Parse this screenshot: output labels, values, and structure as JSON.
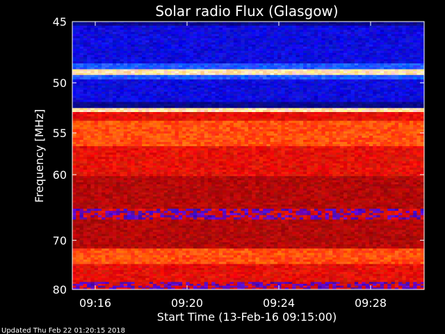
{
  "chart_data": {
    "type": "heatmap",
    "title": "Solar radio Flux (Glasgow)",
    "xlabel": "Start Time (13-Feb-16 09:15:00)",
    "ylabel": "Frequency [MHz]",
    "x_start": "09:15:00",
    "x_end": "09:30:20",
    "x_ticks": [
      "09:16",
      "09:20",
      "09:24",
      "09:28"
    ],
    "x_tick_values": [
      "09:16",
      "09:20",
      "09:24",
      "09:28"
    ],
    "y_ticks": [
      "45",
      "50",
      "55",
      "60",
      "70",
      "80"
    ],
    "y_tick_values": [
      45,
      50,
      55,
      60,
      70,
      80
    ],
    "ylim": [
      45,
      80
    ],
    "y_scale": "reciprocal",
    "grid": false,
    "colors": {
      "background": "#000000",
      "axis": "#ffffff",
      "low": "#0000c8",
      "mid": "#c80000",
      "high": "#ffd700"
    },
    "bands": [
      {
        "from": 45.0,
        "to": 45.3,
        "level": "low-dark"
      },
      {
        "from": 45.3,
        "to": 48.3,
        "level": "low"
      },
      {
        "from": 48.3,
        "to": 48.8,
        "level": "low-bright"
      },
      {
        "from": 48.8,
        "to": 49.3,
        "level": "high"
      },
      {
        "from": 49.3,
        "to": 49.7,
        "level": "low-bright"
      },
      {
        "from": 49.7,
        "to": 51.8,
        "level": "low"
      },
      {
        "from": 51.8,
        "to": 52.4,
        "level": "low-dark"
      },
      {
        "from": 52.4,
        "to": 52.8,
        "level": "high"
      },
      {
        "from": 52.8,
        "to": 53.7,
        "level": "mid"
      },
      {
        "from": 53.7,
        "to": 56.5,
        "level": "mid-bright"
      },
      {
        "from": 56.5,
        "to": 60.2,
        "level": "mid"
      },
      {
        "from": 60.2,
        "to": 64.8,
        "level": "mid-dark"
      },
      {
        "from": 64.8,
        "to": 66.5,
        "level": "mixed"
      },
      {
        "from": 66.5,
        "to": 71.5,
        "level": "mid-dark"
      },
      {
        "from": 71.5,
        "to": 74.5,
        "level": "mid-bright"
      },
      {
        "from": 74.5,
        "to": 78.3,
        "level": "mid"
      },
      {
        "from": 78.3,
        "to": 80.0,
        "level": "mixed"
      }
    ]
  },
  "footer": {
    "updated_text": "Updated Thu Feb 22 01:20:15 2018"
  }
}
